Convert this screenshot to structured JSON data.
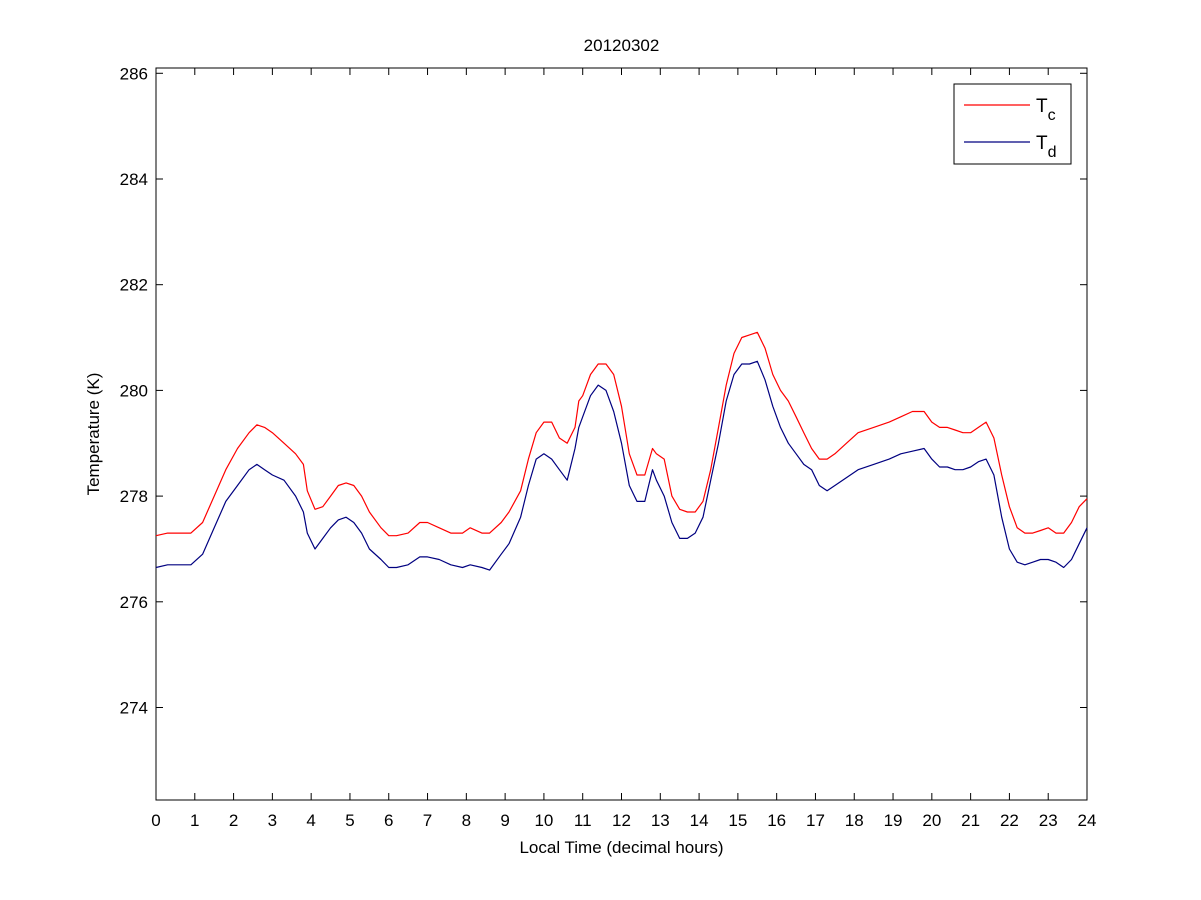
{
  "chart_data": {
    "type": "line",
    "title": "20120302",
    "xlabel": "Local Time (decimal hours)",
    "ylabel": "Temperature (K)",
    "xlim": [
      0,
      24
    ],
    "ylim": [
      272.25,
      286.1
    ],
    "xticks": [
      0,
      1,
      2,
      3,
      4,
      5,
      6,
      7,
      8,
      9,
      10,
      11,
      12,
      13,
      14,
      15,
      16,
      17,
      18,
      19,
      20,
      21,
      22,
      23,
      24
    ],
    "yticks": [
      274,
      276,
      278,
      280,
      282,
      284,
      286
    ],
    "grid": false,
    "legend_position": "top-right",
    "series": [
      {
        "name": "T",
        "subscript": "c",
        "color": "#ff0000",
        "x": [
          0,
          0.3,
          0.6,
          0.9,
          1.2,
          1.5,
          1.8,
          2.1,
          2.4,
          2.6,
          2.8,
          3.0,
          3.3,
          3.6,
          3.8,
          3.9,
          4.1,
          4.3,
          4.5,
          4.7,
          4.9,
          5.1,
          5.3,
          5.5,
          5.8,
          6.0,
          6.2,
          6.5,
          6.8,
          7.0,
          7.3,
          7.6,
          7.9,
          8.1,
          8.4,
          8.6,
          8.9,
          9.1,
          9.4,
          9.6,
          9.8,
          10.0,
          10.2,
          10.4,
          10.6,
          10.8,
          10.9,
          11.0,
          11.2,
          11.4,
          11.6,
          11.8,
          12.0,
          12.2,
          12.4,
          12.6,
          12.8,
          12.9,
          13.1,
          13.3,
          13.5,
          13.7,
          13.9,
          14.1,
          14.3,
          14.5,
          14.7,
          14.9,
          15.1,
          15.3,
          15.5,
          15.7,
          15.9,
          16.1,
          16.3,
          16.5,
          16.7,
          16.9,
          17.1,
          17.3,
          17.5,
          17.8,
          18.1,
          18.5,
          18.9,
          19.2,
          19.5,
          19.8,
          20.0,
          20.2,
          20.4,
          20.6,
          20.8,
          21.0,
          21.2,
          21.4,
          21.6,
          21.8,
          22.0,
          22.2,
          22.4,
          22.6,
          22.8,
          23.0,
          23.2,
          23.4,
          23.6,
          23.8,
          24.0
        ],
        "values": [
          277.25,
          277.3,
          277.3,
          277.3,
          277.5,
          278.0,
          278.5,
          278.9,
          279.2,
          279.35,
          279.3,
          279.2,
          279.0,
          278.8,
          278.6,
          278.1,
          277.75,
          277.8,
          278.0,
          278.2,
          278.25,
          278.2,
          278.0,
          277.7,
          277.4,
          277.25,
          277.25,
          277.3,
          277.5,
          277.5,
          277.4,
          277.3,
          277.3,
          277.4,
          277.3,
          277.3,
          277.5,
          277.7,
          278.1,
          278.7,
          279.2,
          279.4,
          279.4,
          279.1,
          279.0,
          279.3,
          279.8,
          279.9,
          280.3,
          280.5,
          280.5,
          280.3,
          279.7,
          278.8,
          278.4,
          278.4,
          278.9,
          278.8,
          278.7,
          278.0,
          277.75,
          277.7,
          277.7,
          277.9,
          278.5,
          279.3,
          280.1,
          280.7,
          281.0,
          281.05,
          281.1,
          280.8,
          280.3,
          280.0,
          279.8,
          279.5,
          279.2,
          278.9,
          278.7,
          278.7,
          278.8,
          279.0,
          279.2,
          279.3,
          279.4,
          279.5,
          279.6,
          279.6,
          279.4,
          279.3,
          279.3,
          279.25,
          279.2,
          279.2,
          279.3,
          279.4,
          279.1,
          278.4,
          277.8,
          277.4,
          277.3,
          277.3,
          277.35,
          277.4,
          277.3,
          277.3,
          277.5,
          277.8,
          277.95
        ]
      },
      {
        "name": "T",
        "subscript": "d",
        "color": "#000080",
        "x": [
          0,
          0.3,
          0.6,
          0.9,
          1.2,
          1.5,
          1.8,
          2.1,
          2.4,
          2.6,
          2.8,
          3.0,
          3.3,
          3.6,
          3.8,
          3.9,
          4.1,
          4.3,
          4.5,
          4.7,
          4.9,
          5.1,
          5.3,
          5.5,
          5.8,
          6.0,
          6.2,
          6.5,
          6.8,
          7.0,
          7.3,
          7.6,
          7.9,
          8.1,
          8.4,
          8.6,
          8.9,
          9.1,
          9.4,
          9.6,
          9.8,
          10.0,
          10.2,
          10.4,
          10.6,
          10.8,
          10.9,
          11.0,
          11.2,
          11.4,
          11.6,
          11.8,
          12.0,
          12.2,
          12.4,
          12.6,
          12.8,
          12.9,
          13.1,
          13.3,
          13.5,
          13.7,
          13.9,
          14.1,
          14.3,
          14.5,
          14.7,
          14.9,
          15.1,
          15.3,
          15.5,
          15.7,
          15.9,
          16.1,
          16.3,
          16.5,
          16.7,
          16.9,
          17.1,
          17.3,
          17.5,
          17.8,
          18.1,
          18.5,
          18.9,
          19.2,
          19.5,
          19.8,
          20.0,
          20.2,
          20.4,
          20.6,
          20.8,
          21.0,
          21.2,
          21.4,
          21.6,
          21.8,
          22.0,
          22.2,
          22.4,
          22.6,
          22.8,
          23.0,
          23.2,
          23.4,
          23.6,
          23.8,
          24.0
        ],
        "values": [
          276.65,
          276.7,
          276.7,
          276.7,
          276.9,
          277.4,
          277.9,
          278.2,
          278.5,
          278.6,
          278.5,
          278.4,
          278.3,
          278.0,
          277.7,
          277.3,
          277.0,
          277.2,
          277.4,
          277.55,
          277.6,
          277.5,
          277.3,
          277.0,
          276.8,
          276.65,
          276.65,
          276.7,
          276.85,
          276.85,
          276.8,
          276.7,
          276.65,
          276.7,
          276.65,
          276.6,
          276.9,
          277.1,
          277.6,
          278.2,
          278.7,
          278.8,
          278.7,
          278.5,
          278.3,
          278.9,
          279.3,
          279.5,
          279.9,
          280.1,
          280.0,
          279.6,
          279.0,
          278.2,
          277.9,
          277.9,
          278.5,
          278.3,
          278.0,
          277.5,
          277.2,
          277.2,
          277.3,
          277.6,
          278.3,
          279.0,
          279.8,
          280.3,
          280.5,
          280.5,
          280.55,
          280.2,
          279.7,
          279.3,
          279.0,
          278.8,
          278.6,
          278.5,
          278.2,
          278.1,
          278.2,
          278.35,
          278.5,
          278.6,
          278.7,
          278.8,
          278.85,
          278.9,
          278.7,
          278.55,
          278.55,
          278.5,
          278.5,
          278.55,
          278.65,
          278.7,
          278.4,
          277.6,
          277.0,
          276.75,
          276.7,
          276.75,
          276.8,
          276.8,
          276.75,
          276.65,
          276.8,
          277.1,
          277.4
        ]
      }
    ]
  }
}
